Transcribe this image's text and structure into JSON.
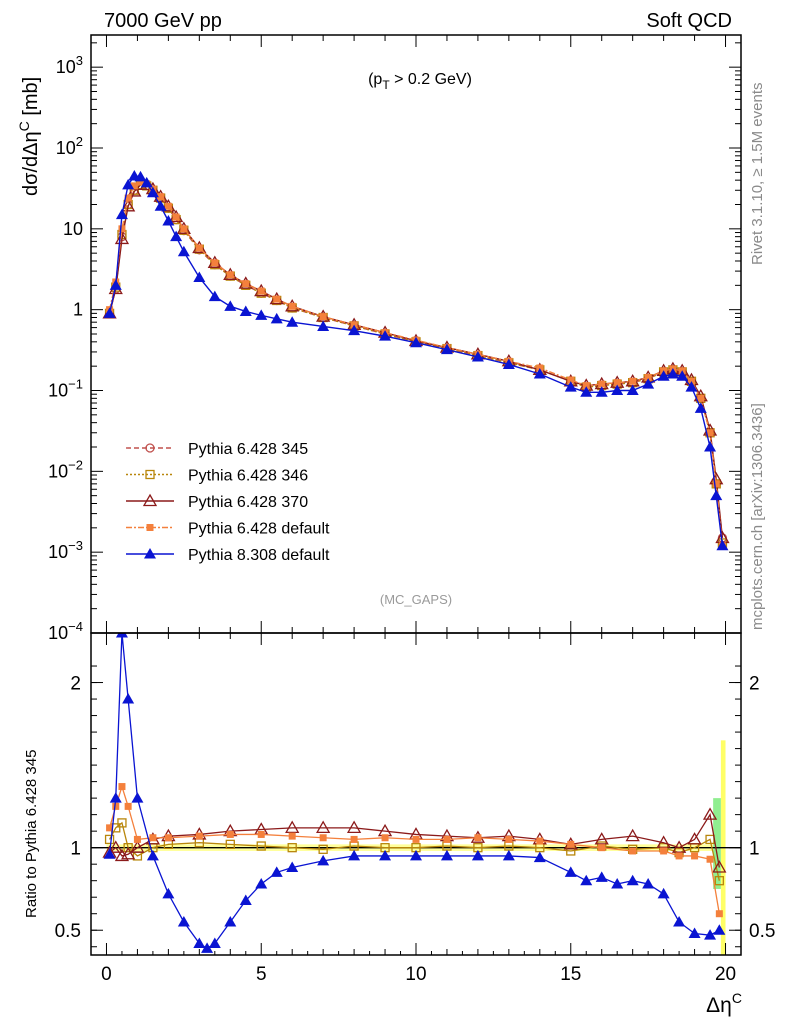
{
  "header": {
    "left": "7000 GeV pp",
    "right": "Soft QCD"
  },
  "side_labels": {
    "rivet": "Rivet 3.1.10, ≥ 1.5M events",
    "mcplots": "mcplots.cern.ch [arXiv:1306.3436]"
  },
  "annotations": {
    "cut": "(p_T > 0.2 GeV)",
    "analysis": "(MC_GAPS)"
  },
  "chart_data": [
    {
      "type": "line",
      "panel": "main",
      "ylabel": "dσ/dΔη^C [mb]",
      "yscale": "log",
      "ylim": [
        0.0001,
        2500
      ],
      "xlim": [
        -0.5,
        20.5
      ],
      "yticks": [
        "10^{-4}",
        "10^{-3}",
        "10^{-2}",
        "10^{-1}",
        "1",
        "10",
        "10^{2}",
        "10^{3}"
      ],
      "legend_position": "lower-left",
      "series": [
        {
          "name": "Pythia 6.428 345",
          "color": "#c0504d",
          "marker": "open-circle",
          "linestyle": "dashed",
          "x": [
            0.1,
            0.3,
            0.5,
            0.7,
            0.9,
            1.1,
            1.3,
            1.5,
            1.75,
            2,
            2.25,
            2.5,
            3,
            3.5,
            4,
            4.5,
            5,
            5.5,
            6,
            7,
            8,
            9,
            10,
            11,
            12,
            13,
            14,
            15,
            15.5,
            16,
            16.5,
            17,
            17.5,
            18,
            18.3,
            18.6,
            18.9,
            19.2,
            19.5,
            19.7,
            19.9
          ],
          "values": [
            0.9,
            1.8,
            8,
            20,
            30,
            35,
            34,
            30,
            24,
            18,
            13,
            9.5,
            5.5,
            3.6,
            2.6,
            2.0,
            1.6,
            1.3,
            1.05,
            0.8,
            0.63,
            0.5,
            0.4,
            0.33,
            0.27,
            0.22,
            0.18,
            0.13,
            0.11,
            0.115,
            0.12,
            0.125,
            0.14,
            0.17,
            0.18,
            0.17,
            0.13,
            0.08,
            0.03,
            0.007,
            0.0015
          ]
        },
        {
          "name": "Pythia 6.428 346",
          "color": "#b8860b",
          "marker": "open-square",
          "linestyle": "dotted",
          "x": [
            0.1,
            0.3,
            0.5,
            0.7,
            0.9,
            1.1,
            1.3,
            1.5,
            1.75,
            2,
            2.25,
            2.5,
            3,
            3.5,
            4,
            4.5,
            5,
            5.5,
            6,
            7,
            8,
            9,
            10,
            11,
            12,
            13,
            14,
            15,
            15.5,
            16,
            16.5,
            17,
            17.5,
            18,
            18.3,
            18.6,
            18.9,
            19.2,
            19.5,
            19.7,
            19.9
          ],
          "values": [
            0.9,
            1.9,
            8.5,
            20,
            30,
            35,
            34,
            30,
            24,
            18,
            13,
            9.6,
            5.6,
            3.6,
            2.6,
            2.0,
            1.6,
            1.3,
            1.05,
            0.8,
            0.63,
            0.5,
            0.4,
            0.33,
            0.27,
            0.22,
            0.18,
            0.13,
            0.11,
            0.115,
            0.12,
            0.125,
            0.14,
            0.17,
            0.18,
            0.17,
            0.13,
            0.08,
            0.03,
            0.007,
            0.0013
          ]
        },
        {
          "name": "Pythia 6.428 370",
          "color": "#8b1a1a",
          "marker": "open-triangle",
          "linestyle": "solid",
          "x": [
            0.1,
            0.3,
            0.5,
            0.7,
            0.9,
            1.1,
            1.3,
            1.5,
            1.75,
            2,
            2.25,
            2.5,
            3,
            3.5,
            4,
            4.5,
            5,
            5.5,
            6,
            7,
            8,
            9,
            10,
            11,
            12,
            13,
            14,
            15,
            15.5,
            16,
            16.5,
            17,
            17.5,
            18,
            18.3,
            18.6,
            18.9,
            19.2,
            19.5,
            19.7,
            19.9
          ],
          "values": [
            0.9,
            1.8,
            7.5,
            19,
            29,
            35,
            35,
            31,
            25,
            19,
            14,
            10,
            5.8,
            3.8,
            2.7,
            2.1,
            1.7,
            1.35,
            1.1,
            0.82,
            0.65,
            0.52,
            0.41,
            0.34,
            0.28,
            0.23,
            0.18,
            0.13,
            0.115,
            0.12,
            0.125,
            0.13,
            0.145,
            0.175,
            0.185,
            0.175,
            0.135,
            0.085,
            0.032,
            0.008,
            0.0015
          ]
        },
        {
          "name": "Pythia 6.428 default",
          "color": "#f4803c",
          "marker": "filled-square",
          "linestyle": "dash-dot",
          "x": [
            0.1,
            0.3,
            0.5,
            0.7,
            0.9,
            1.1,
            1.3,
            1.5,
            1.75,
            2,
            2.25,
            2.5,
            3,
            3.5,
            4,
            4.5,
            5,
            5.5,
            6,
            7,
            8,
            9,
            10,
            11,
            12,
            13,
            14,
            15,
            15.5,
            16,
            16.5,
            17,
            17.5,
            18,
            18.3,
            18.6,
            18.9,
            19.2,
            19.5,
            19.7,
            19.9
          ],
          "values": [
            1.0,
            2.2,
            10,
            24,
            34,
            38,
            36,
            31,
            25,
            19,
            14,
            10,
            5.8,
            3.8,
            2.7,
            2.1,
            1.7,
            1.35,
            1.1,
            0.82,
            0.65,
            0.52,
            0.42,
            0.34,
            0.28,
            0.23,
            0.19,
            0.135,
            0.115,
            0.12,
            0.125,
            0.13,
            0.145,
            0.175,
            0.185,
            0.175,
            0.13,
            0.08,
            0.03,
            0.007,
            0.0012
          ]
        },
        {
          "name": "Pythia 8.308 default",
          "color": "#0a14d2",
          "marker": "filled-triangle",
          "linestyle": "solid",
          "x": [
            0.1,
            0.3,
            0.5,
            0.7,
            0.9,
            1.1,
            1.3,
            1.5,
            1.75,
            2,
            2.25,
            2.5,
            3,
            3.5,
            4,
            4.5,
            5,
            5.5,
            6,
            7,
            8,
            9,
            10,
            11,
            12,
            13,
            14,
            15,
            15.5,
            16,
            16.5,
            17,
            17.5,
            18,
            18.3,
            18.6,
            18.9,
            19.2,
            19.5,
            19.7,
            19.9
          ],
          "values": [
            0.9,
            2.0,
            15,
            35,
            45,
            44,
            37,
            28,
            19,
            12.5,
            8,
            5.2,
            2.5,
            1.45,
            1.1,
            0.95,
            0.85,
            0.77,
            0.7,
            0.62,
            0.55,
            0.47,
            0.39,
            0.32,
            0.26,
            0.21,
            0.16,
            0.11,
            0.095,
            0.095,
            0.1,
            0.1,
            0.12,
            0.15,
            0.16,
            0.15,
            0.11,
            0.06,
            0.02,
            0.005,
            0.0012
          ]
        }
      ]
    },
    {
      "type": "line",
      "panel": "ratio",
      "xlabel": "Δη^C",
      "ylabel": "Ratio to Pythia 6.428 345",
      "ylim": [
        0.35,
        2.3
      ],
      "xlim": [
        -0.5,
        20.5
      ],
      "xticks": [
        0,
        5,
        10,
        15,
        20
      ],
      "yticks": [
        0.5,
        1,
        2
      ],
      "series": [
        {
          "name": "Pythia 6.428 346",
          "color": "#b8860b",
          "x": [
            0.1,
            0.3,
            0.5,
            0.7,
            1,
            1.5,
            2,
            3,
            4,
            5,
            6,
            7,
            8,
            9,
            10,
            11,
            12,
            13,
            14,
            15,
            16,
            17,
            18,
            18.5,
            19,
            19.5,
            19.8
          ],
          "values": [
            1.05,
            1.12,
            1.15,
            1.0,
            0.95,
            1.0,
            1.02,
            1.03,
            1.02,
            1.01,
            1.0,
            0.99,
            1.01,
            1.0,
            1.0,
            1.01,
            1.0,
            1.01,
            1.0,
            0.98,
            1.01,
            0.99,
            1.0,
            0.97,
            1.0,
            1.05,
            0.8
          ]
        },
        {
          "name": "Pythia 6.428 370",
          "color": "#8b1a1a",
          "x": [
            0.1,
            0.3,
            0.5,
            0.7,
            1,
            1.5,
            2,
            3,
            4,
            5,
            6,
            7,
            8,
            9,
            10,
            11,
            12,
            13,
            14,
            15,
            16,
            17,
            18,
            18.5,
            19,
            19.5,
            19.8
          ],
          "values": [
            0.97,
            1.0,
            0.95,
            0.96,
            1.0,
            1.05,
            1.07,
            1.08,
            1.1,
            1.11,
            1.12,
            1.12,
            1.12,
            1.1,
            1.08,
            1.07,
            1.06,
            1.07,
            1.05,
            1.02,
            1.05,
            1.07,
            1.03,
            1.0,
            1.05,
            1.2,
            0.88
          ]
        },
        {
          "name": "Pythia 6.428 default",
          "color": "#f4803c",
          "x": [
            0.1,
            0.3,
            0.5,
            0.7,
            1,
            1.5,
            2,
            3,
            4,
            5,
            6,
            7,
            8,
            9,
            10,
            11,
            12,
            13,
            14,
            15,
            16,
            17,
            18,
            18.5,
            19,
            19.5,
            19.8
          ],
          "values": [
            1.12,
            1.25,
            1.37,
            1.25,
            1.05,
            1.06,
            1.06,
            1.07,
            1.08,
            1.08,
            1.07,
            1.06,
            1.05,
            1.06,
            1.05,
            1.05,
            1.06,
            1.05,
            1.04,
            1.02,
            1.0,
            0.98,
            0.98,
            0.95,
            0.95,
            0.93,
            0.6
          ]
        },
        {
          "name": "Pythia 8.308 default",
          "color": "#0a14d2",
          "x": [
            0.1,
            0.3,
            0.5,
            0.7,
            1,
            1.5,
            2,
            2.5,
            3,
            3.25,
            3.5,
            4,
            4.5,
            5,
            5.5,
            6,
            7,
            8,
            9,
            10,
            11,
            12,
            13,
            14,
            15,
            15.5,
            16,
            16.5,
            17,
            17.5,
            18,
            18.5,
            19,
            19.5,
            19.8
          ],
          "values": [
            0.96,
            1.3,
            2.3,
            1.9,
            1.3,
            0.95,
            0.72,
            0.55,
            0.42,
            0.39,
            0.42,
            0.55,
            0.68,
            0.78,
            0.85,
            0.88,
            0.92,
            0.95,
            0.95,
            0.95,
            0.95,
            0.95,
            0.95,
            0.94,
            0.85,
            0.8,
            0.82,
            0.78,
            0.8,
            0.78,
            0.72,
            0.55,
            0.48,
            0.47,
            0.5
          ]
        }
      ]
    }
  ]
}
